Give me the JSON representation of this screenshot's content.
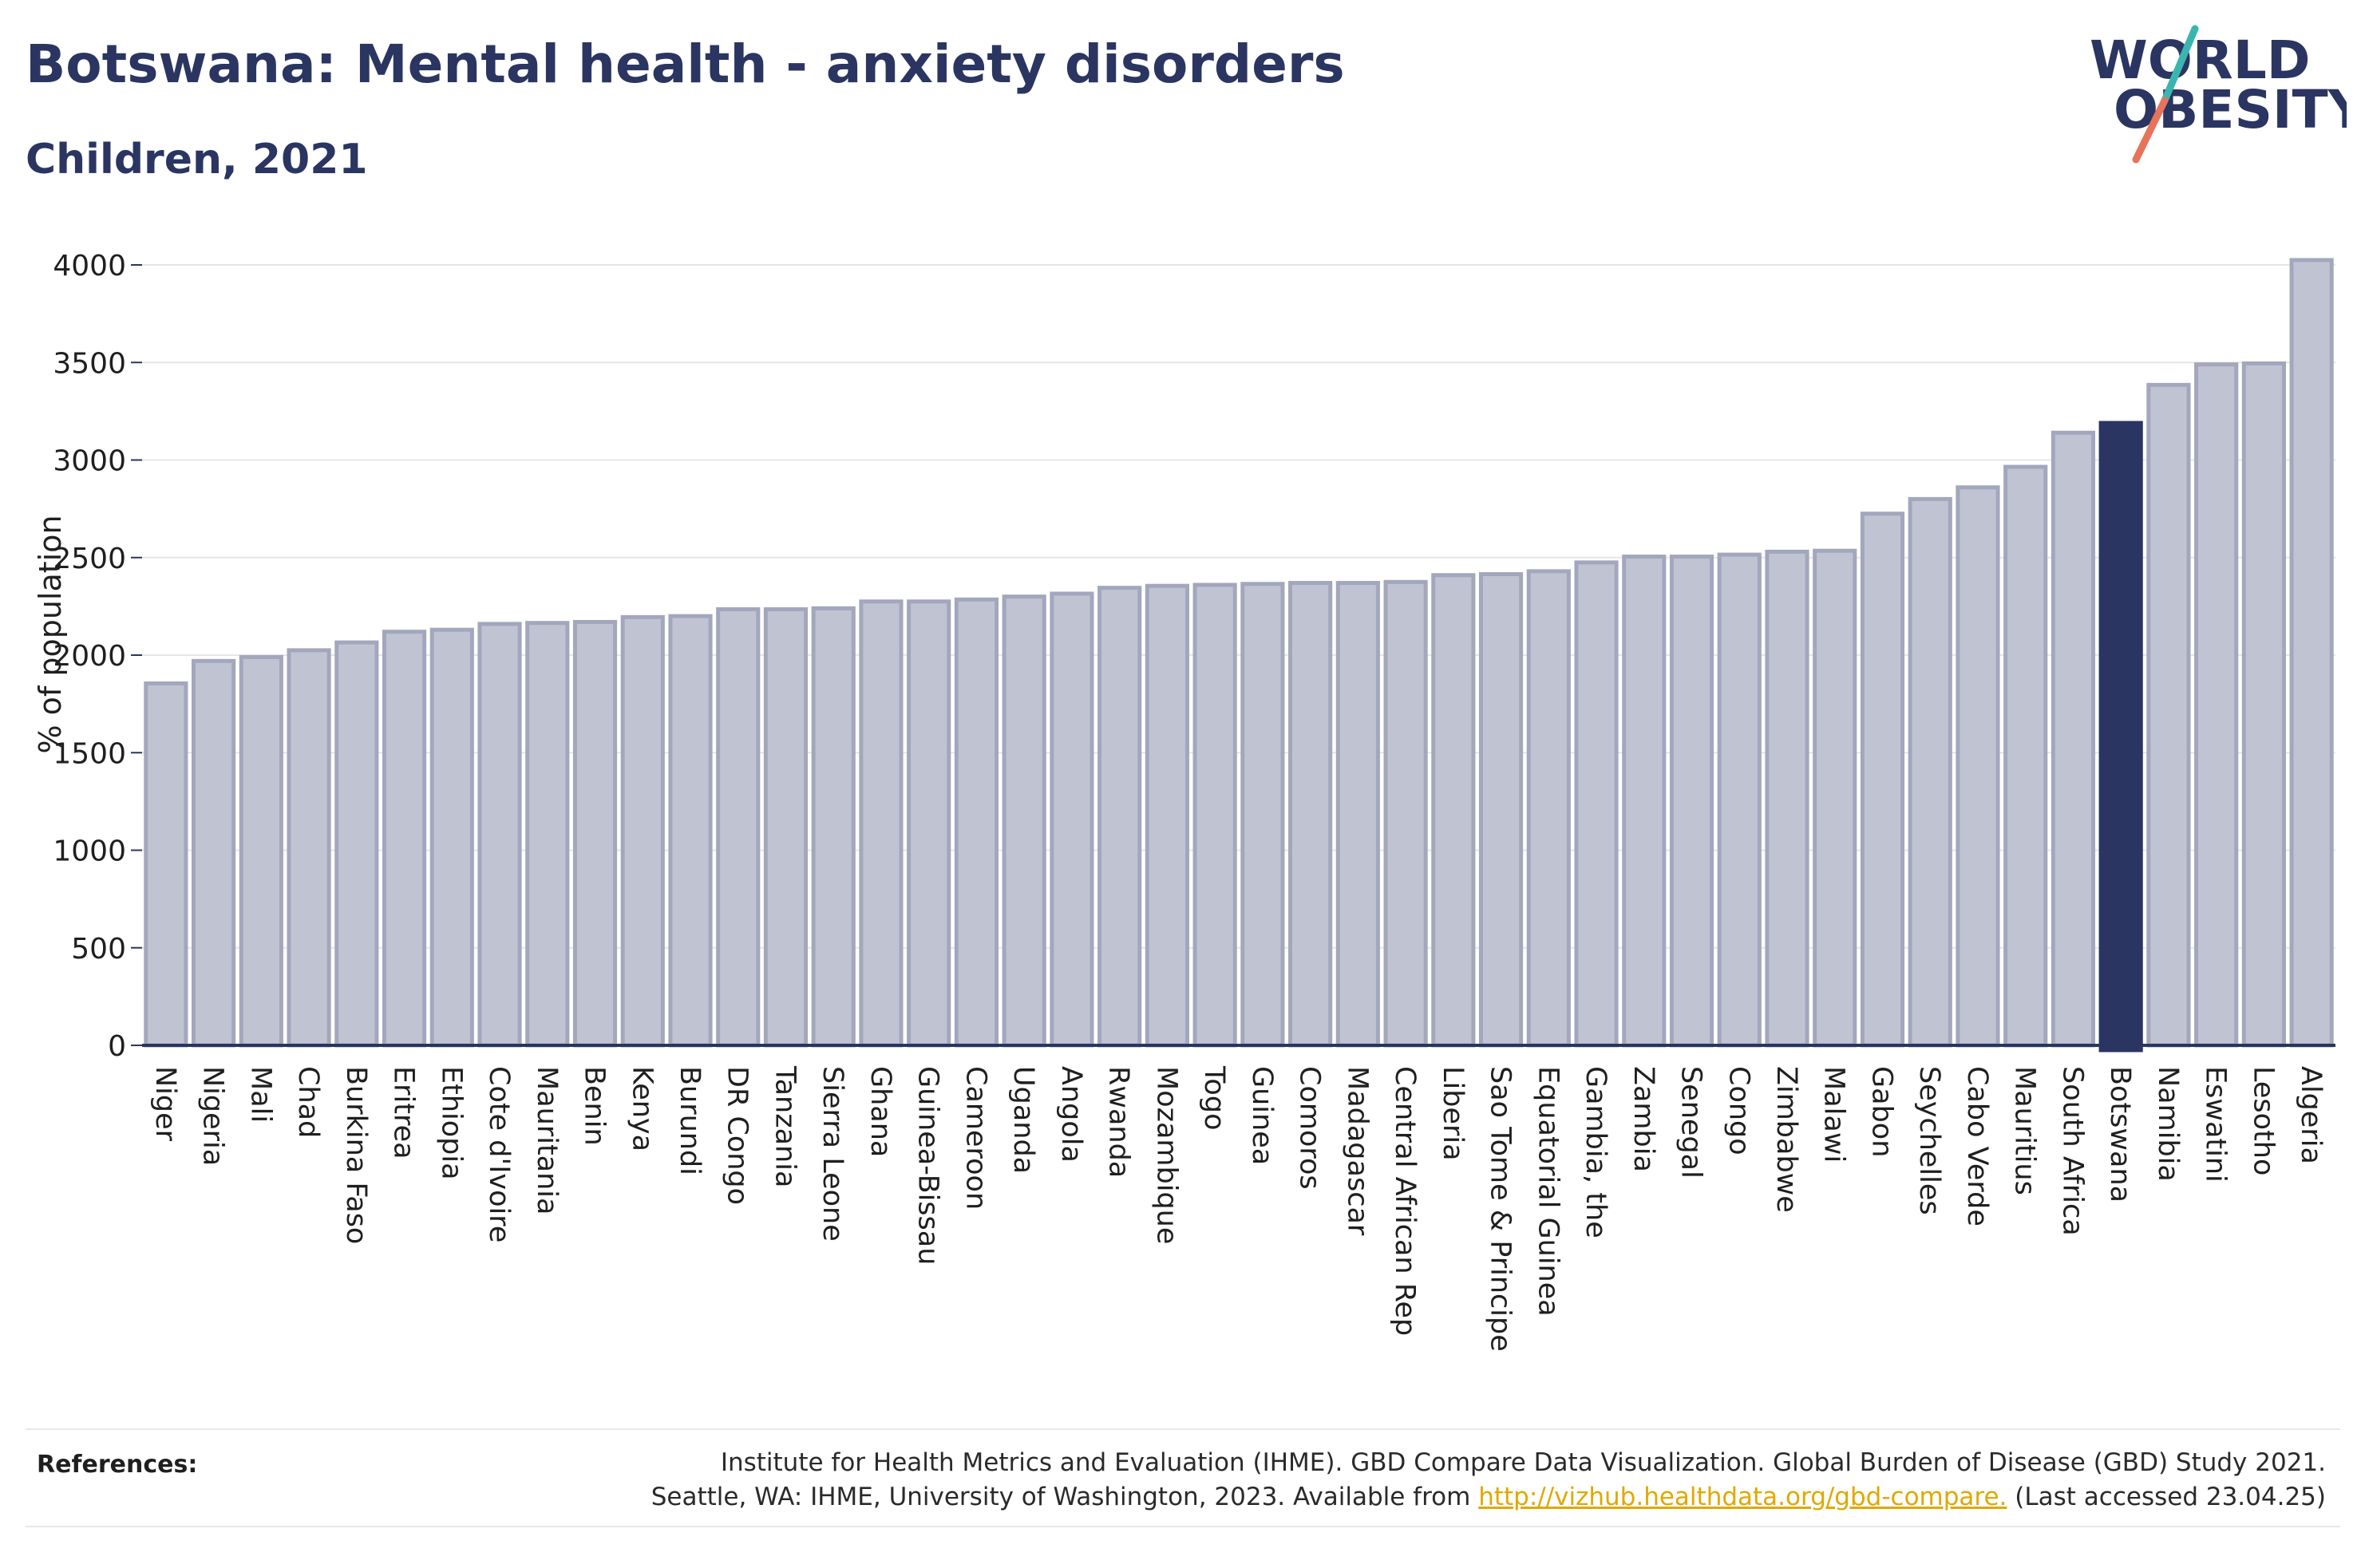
{
  "header": {
    "title": "Botswana: Mental health - anxiety disorders",
    "subtitle": "Children, 2021"
  },
  "logo": {
    "line1": "WORLD",
    "line2": "OBESITY",
    "colors": {
      "text": "#2a3561",
      "slash_teal": "#3ab5b0",
      "slash_coral": "#e8735a"
    }
  },
  "references": {
    "label": "References:",
    "line1": "Institute for Health Metrics and Evaluation (IHME). GBD Compare Data Visualization. Global Burden of Disease (GBD) Study 2021.",
    "line2_prefix": "Seattle, WA: IHME, University of Washington, 2023. Available from ",
    "link": "http://vizhub.healthdata.org/gbd-compare.",
    "line2_suffix": " (Last accessed 23.04.25)"
  },
  "colors": {
    "bar": "#c0c4d2",
    "bar_border": "#a2a7bd",
    "highlight": "#2a3561",
    "grid": "#e6e6e6",
    "axis": "#2a3561"
  },
  "chart_data": {
    "type": "bar",
    "title": "Botswana: Mental health - anxiety disorders",
    "subtitle": "Children, 2021",
    "xlabel": "",
    "ylabel": "% of population",
    "ylim": [
      0,
      4100
    ],
    "yticks": [
      0,
      500,
      1000,
      1500,
      2000,
      2500,
      3000,
      3500,
      4000
    ],
    "grid": true,
    "highlight": "Botswana",
    "categories": [
      "Niger",
      "Nigeria",
      "Mali",
      "Chad",
      "Burkina Faso",
      "Eritrea",
      "Ethiopia",
      "Cote d'Ivoire",
      "Mauritania",
      "Benin",
      "Kenya",
      "Burundi",
      "DR Congo",
      "Tanzania",
      "Sierra Leone",
      "Ghana",
      "Guinea-Bissau",
      "Cameroon",
      "Uganda",
      "Angola",
      "Rwanda",
      "Mozambique",
      "Togo",
      "Guinea",
      "Comoros",
      "Madagascar",
      "Central African Rep",
      "Liberia",
      "Sao Tome & Principe",
      "Equatorial Guinea",
      "Gambia, the",
      "Zambia",
      "Senegal",
      "Congo",
      "Zimbabwe",
      "Malawi",
      "Gabon",
      "Seychelles",
      "Cabo Verde",
      "Mauritius",
      "South Africa",
      "Botswana",
      "Namibia",
      "Eswatini",
      "Lesotho",
      "Algeria"
    ],
    "values": [
      1855,
      1970,
      1990,
      2025,
      2065,
      2120,
      2130,
      2160,
      2165,
      2170,
      2195,
      2200,
      2235,
      2235,
      2240,
      2275,
      2275,
      2285,
      2300,
      2315,
      2345,
      2355,
      2360,
      2365,
      2370,
      2370,
      2375,
      2410,
      2415,
      2430,
      2475,
      2505,
      2505,
      2515,
      2530,
      2535,
      2725,
      2800,
      2860,
      2965,
      3140,
      3190,
      3385,
      3490,
      3495,
      4025
    ]
  }
}
